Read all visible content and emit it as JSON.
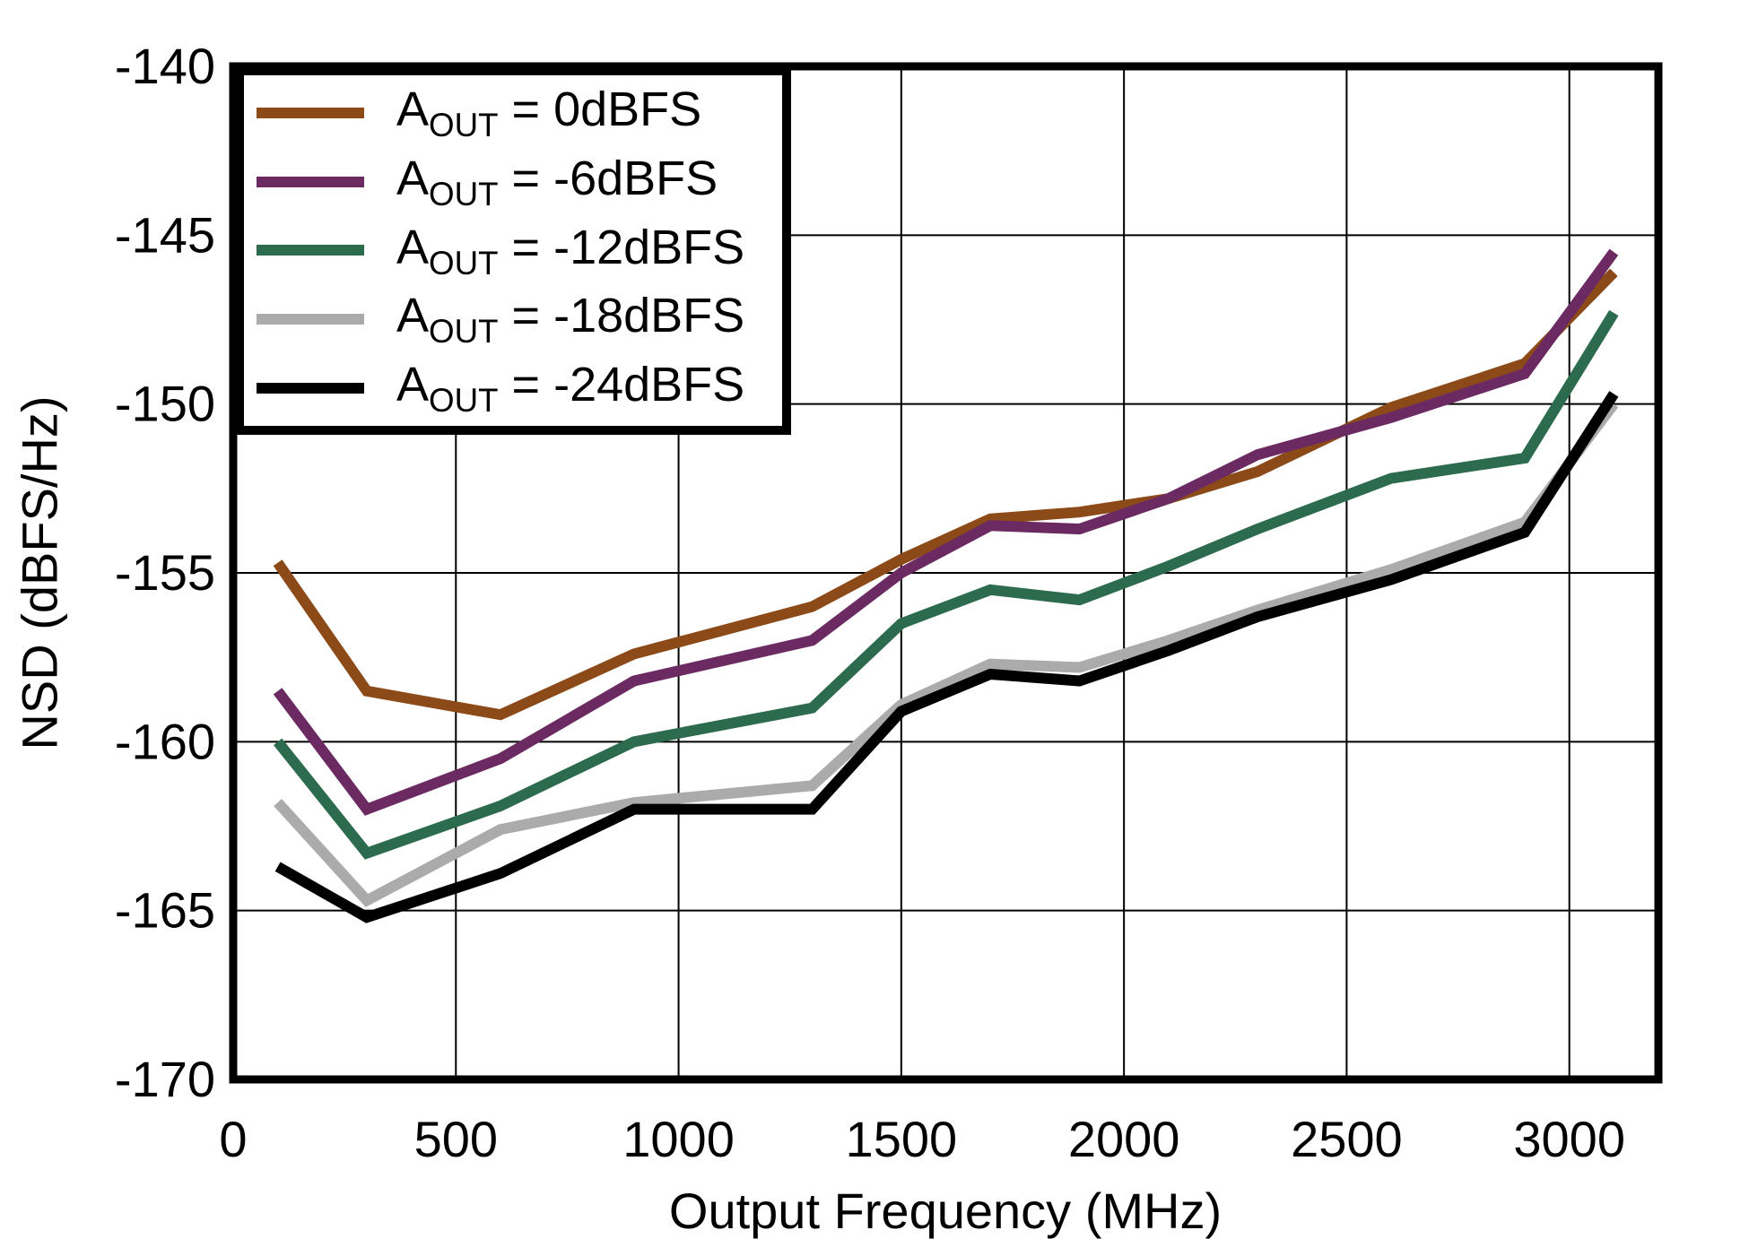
{
  "figure": {
    "background": "#ffffff",
    "axis_color": "#000000",
    "grid_color": "#000000"
  },
  "chart_data": {
    "type": "line",
    "title": "",
    "xlabel": "Output Frequency (MHz)",
    "ylabel": "NSD (dBFS/Hz)",
    "xlim": [
      0,
      3200
    ],
    "ylim": [
      -170,
      -140
    ],
    "grid": true,
    "legend_position": "top-left",
    "x_ticks": [
      0,
      500,
      1000,
      1500,
      2000,
      2500,
      3000
    ],
    "y_ticks": [
      -140,
      -145,
      -150,
      -155,
      -160,
      -165,
      -170
    ],
    "x": [
      100,
      300,
      600,
      900,
      1300,
      1500,
      1700,
      1900,
      2100,
      2300,
      2600,
      2900,
      3100
    ],
    "series": [
      {
        "name": "AOUT = 0dBFS",
        "label_main": "A",
        "label_sub": "OUT",
        "label_rest": " = 0dBFS",
        "color": "#8C4A18",
        "values": [
          -154.7,
          -158.5,
          -159.2,
          -157.4,
          -156.0,
          -154.6,
          -153.4,
          -153.2,
          -152.8,
          -152.0,
          -150.1,
          -148.8,
          -146.1
        ]
      },
      {
        "name": "AOUT = -6dBFS",
        "label_main": "A",
        "label_sub": "OUT",
        "label_rest": " = -6dBFS",
        "color": "#6C2A63",
        "values": [
          -158.5,
          -162.0,
          -160.5,
          -158.2,
          -157.0,
          -155.0,
          -153.6,
          -153.7,
          -152.8,
          -151.5,
          -150.4,
          -149.1,
          -145.5
        ]
      },
      {
        "name": "AOUT = -12dBFS",
        "label_main": "A",
        "label_sub": "OUT",
        "label_rest": " = -12dBFS",
        "color": "#2D6B4E",
        "values": [
          -160.0,
          -163.3,
          -161.9,
          -160.0,
          -159.0,
          -156.5,
          -155.5,
          -155.8,
          -154.8,
          -153.7,
          -152.2,
          -151.6,
          -147.3
        ]
      },
      {
        "name": "AOUT = -18dBFS",
        "label_main": "A",
        "label_sub": "OUT",
        "label_rest": " = -18dBFS",
        "color": "#ABABAB",
        "values": [
          -161.8,
          -164.7,
          -162.6,
          -161.8,
          -161.3,
          -158.9,
          -157.7,
          -157.8,
          -157.0,
          -156.1,
          -154.9,
          -153.5,
          -150.0
        ]
      },
      {
        "name": "AOUT = -24dBFS",
        "label_main": "A",
        "label_sub": "OUT",
        "label_rest": " = -24dBFS",
        "color": "#000000",
        "values": [
          -163.7,
          -165.2,
          -163.9,
          -162.0,
          -162.0,
          -159.1,
          -158.0,
          -158.2,
          -157.3,
          -156.3,
          -155.2,
          -153.8,
          -149.7
        ]
      }
    ]
  }
}
